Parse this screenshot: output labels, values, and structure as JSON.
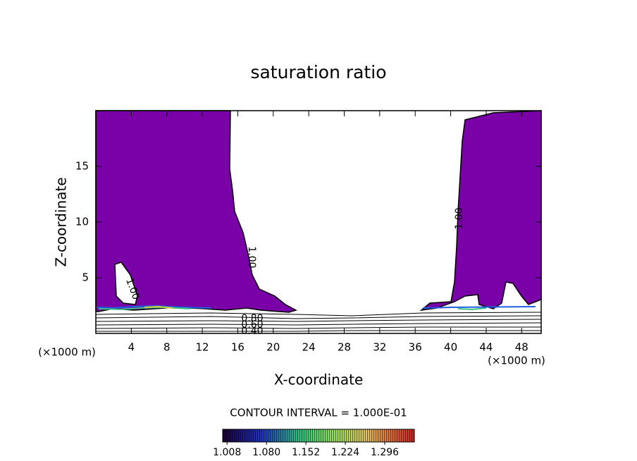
{
  "chart_data": {
    "type": "contour",
    "title": "saturation ratio",
    "x_label": "X-coordinate",
    "y_label": "Z-coordinate",
    "x_unit": "(×1000 m)",
    "xlim": [
      0,
      50.2
    ],
    "ylim": [
      0,
      20
    ],
    "xticks": [
      4,
      8,
      12,
      16,
      20,
      24,
      28,
      32,
      36,
      40,
      44,
      48
    ],
    "yticks": [
      5,
      10,
      15
    ],
    "fill_color": "#7a00a8",
    "contour_labels": [
      "1.00",
      "1.00",
      "1.00",
      "0.80",
      "0.60",
      "0.40"
    ],
    "contour_interval": "CONTOUR INTERVAL = 1.000E-01",
    "colorbar_lim": [
      1.0,
      1.35
    ],
    "colorbar_ticks": [
      1.008,
      {
        "value": 1.08,
        "label": "1.080"
      },
      1.152,
      1.224,
      1.296
    ]
  }
}
